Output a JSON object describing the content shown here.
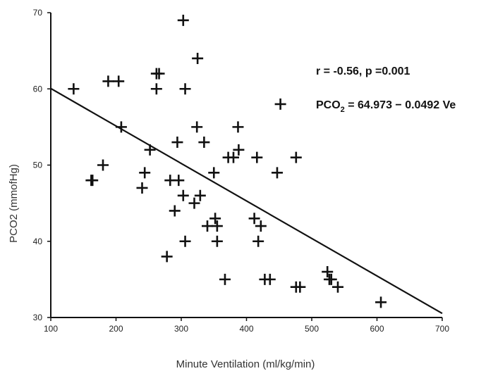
{
  "chart_data": {
    "type": "scatter",
    "title": "",
    "xlabel": "Minute Ventilation (ml/kg/min)",
    "ylabel": "PCO2 (mmofHg)",
    "xlim": [
      100,
      700
    ],
    "ylim": [
      30,
      70
    ],
    "xticks": [
      100,
      200,
      300,
      400,
      500,
      600,
      700
    ],
    "yticks": [
      30,
      40,
      50,
      60,
      70
    ],
    "grid": false,
    "marker": "plus",
    "colors": {
      "marker": "#111111",
      "line": "#111111",
      "axis": "#111111"
    },
    "series": [
      {
        "points": [
          {
            "x": 135,
            "y": 60
          },
          {
            "x": 162,
            "y": 48
          },
          {
            "x": 164,
            "y": 48
          },
          {
            "x": 180,
            "y": 50
          },
          {
            "x": 188,
            "y": 61
          },
          {
            "x": 204,
            "y": 61
          },
          {
            "x": 208,
            "y": 55
          },
          {
            "x": 240,
            "y": 47
          },
          {
            "x": 244,
            "y": 49
          },
          {
            "x": 252,
            "y": 52
          },
          {
            "x": 262,
            "y": 62
          },
          {
            "x": 266,
            "y": 62
          },
          {
            "x": 262,
            "y": 60
          },
          {
            "x": 278,
            "y": 38
          },
          {
            "x": 283,
            "y": 48
          },
          {
            "x": 290,
            "y": 44
          },
          {
            "x": 294,
            "y": 53
          },
          {
            "x": 296,
            "y": 48
          },
          {
            "x": 303,
            "y": 69
          },
          {
            "x": 306,
            "y": 60
          },
          {
            "x": 303,
            "y": 46
          },
          {
            "x": 306,
            "y": 40
          },
          {
            "x": 320,
            "y": 45
          },
          {
            "x": 324,
            "y": 55
          },
          {
            "x": 325,
            "y": 64
          },
          {
            "x": 329,
            "y": 46
          },
          {
            "x": 335,
            "y": 53
          },
          {
            "x": 340,
            "y": 42
          },
          {
            "x": 350,
            "y": 49
          },
          {
            "x": 352,
            "y": 43
          },
          {
            "x": 355,
            "y": 42
          },
          {
            "x": 355,
            "y": 40
          },
          {
            "x": 367,
            "y": 35
          },
          {
            "x": 372,
            "y": 51
          },
          {
            "x": 380,
            "y": 51
          },
          {
            "x": 387,
            "y": 55
          },
          {
            "x": 388,
            "y": 52
          },
          {
            "x": 412,
            "y": 43
          },
          {
            "x": 416,
            "y": 51
          },
          {
            "x": 418,
            "y": 40
          },
          {
            "x": 422,
            "y": 42
          },
          {
            "x": 428,
            "y": 35
          },
          {
            "x": 436,
            "y": 35
          },
          {
            "x": 447,
            "y": 49
          },
          {
            "x": 452,
            "y": 58
          },
          {
            "x": 476,
            "y": 51
          },
          {
            "x": 476,
            "y": 34
          },
          {
            "x": 482,
            "y": 34
          },
          {
            "x": 524,
            "y": 36
          },
          {
            "x": 527,
            "y": 35
          },
          {
            "x": 530,
            "y": 35
          },
          {
            "x": 540,
            "y": 34
          },
          {
            "x": 606,
            "y": 32
          }
        ]
      }
    ],
    "regression": {
      "intercept": 64.973,
      "slope": -0.0492,
      "x_range": [
        100,
        700
      ]
    },
    "annotations": {
      "stats": "r = -0.56, p =0.001",
      "equation_prefix": "PCO",
      "equation_sub": "2",
      "equation_suffix": " = 64.973 − 0.0492 Ve"
    }
  }
}
